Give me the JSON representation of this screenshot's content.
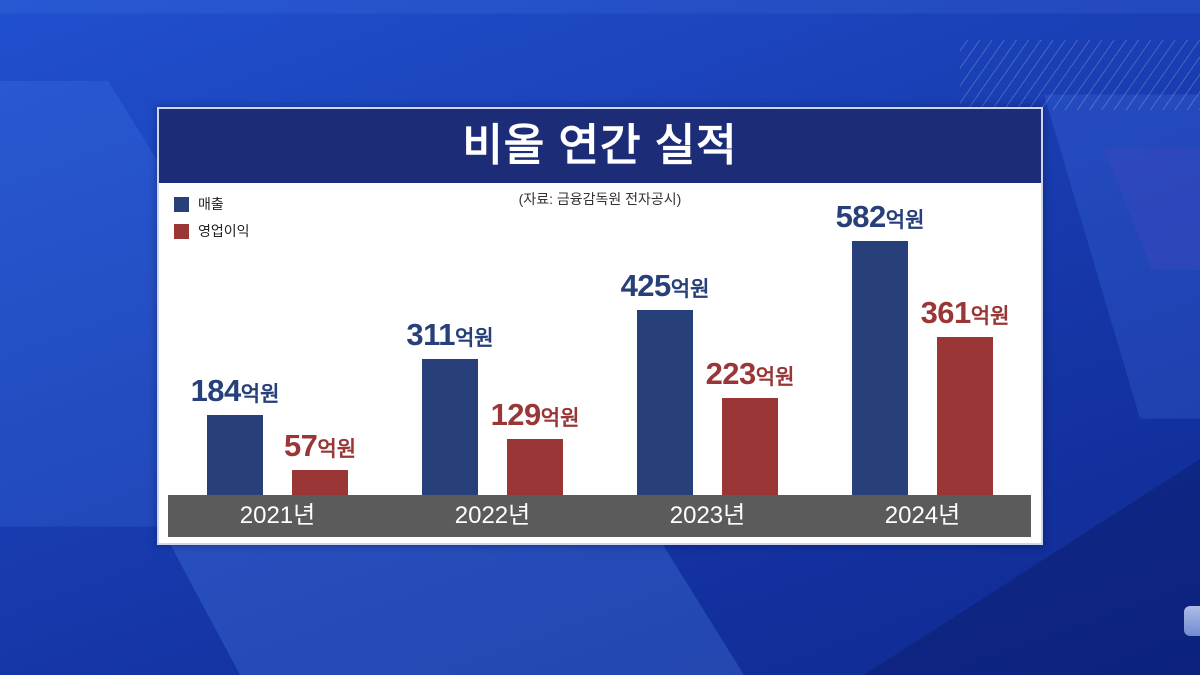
{
  "chart_data": {
    "type": "bar",
    "title": "비올 연간 실적",
    "source": "(자료: 금융감독원 전자공시)",
    "categories": [
      "2021년",
      "2022년",
      "2023년",
      "2024년"
    ],
    "value_unit": "억원",
    "series": [
      {
        "name": "매출",
        "color": "#27407a",
        "values": [
          184,
          311,
          425,
          582
        ]
      },
      {
        "name": "영업이익",
        "color": "#9b3636",
        "values": [
          57,
          129,
          223,
          361
        ]
      }
    ],
    "legend_position": "top-left",
    "grid": false,
    "xlabel": "",
    "ylabel": ""
  }
}
